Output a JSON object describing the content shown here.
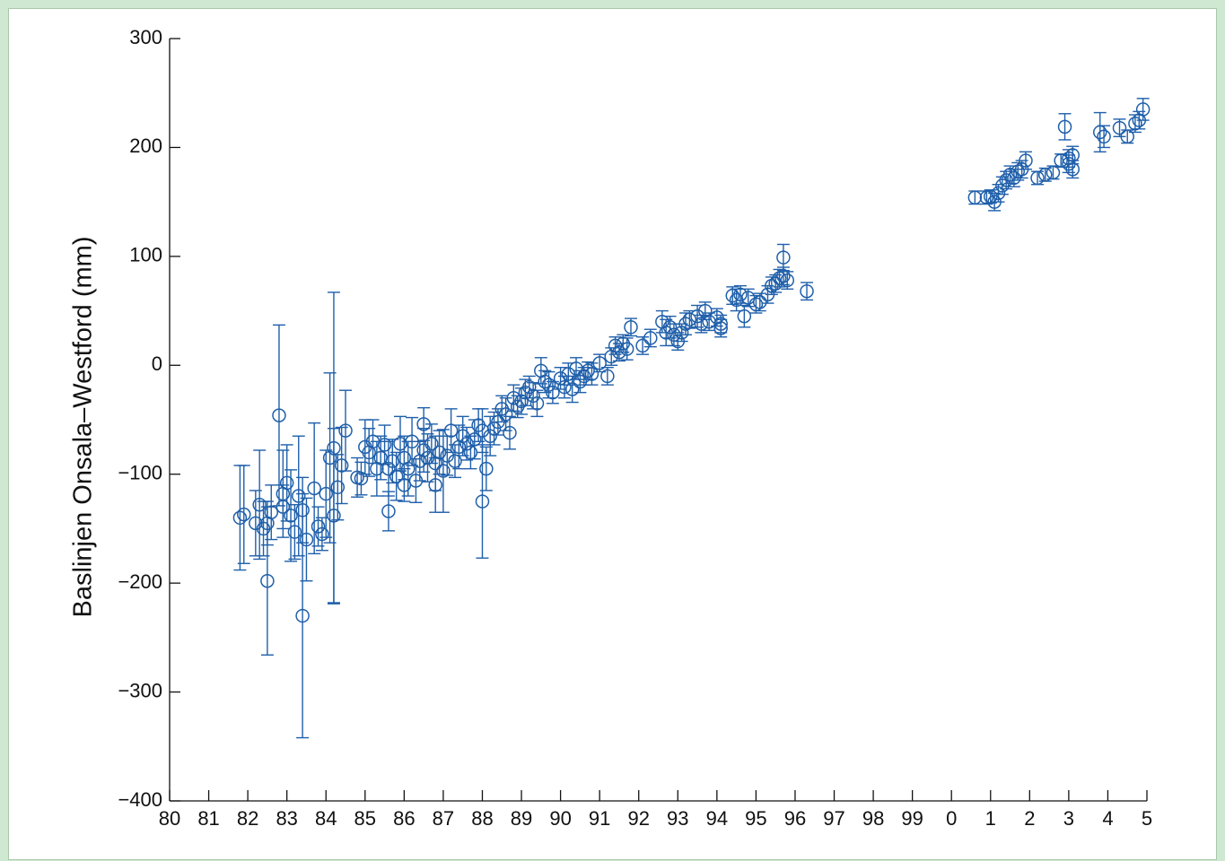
{
  "chart_data": {
    "type": "scatter",
    "title": "",
    "xlabel": "",
    "ylabel": "Baslinjen Onsala–Westford (mm)",
    "ylim": [
      -400,
      300
    ],
    "xlim": [
      1980,
      2005
    ],
    "grid": false,
    "marker": "open-circle-with-error-bars",
    "colors": {
      "series": "#1f5faa",
      "axis": "#111111"
    },
    "y_ticks": [
      {
        "value": 300,
        "label": "300"
      },
      {
        "value": 200,
        "label": "200"
      },
      {
        "value": 100,
        "label": "100"
      },
      {
        "value": 0,
        "label": "0"
      },
      {
        "value": -100,
        "label": "−100"
      },
      {
        "value": -200,
        "label": "−200"
      },
      {
        "value": -300,
        "label": "−300"
      },
      {
        "value": -400,
        "label": "−400"
      }
    ],
    "x_ticks": [
      {
        "value": 1980,
        "label": "80"
      },
      {
        "value": 1981,
        "label": "81"
      },
      {
        "value": 1982,
        "label": "82"
      },
      {
        "value": 1983,
        "label": "83"
      },
      {
        "value": 1984,
        "label": "84"
      },
      {
        "value": 1985,
        "label": "85"
      },
      {
        "value": 1986,
        "label": "86"
      },
      {
        "value": 1987,
        "label": "87"
      },
      {
        "value": 1988,
        "label": "88"
      },
      {
        "value": 1989,
        "label": "89"
      },
      {
        "value": 1990,
        "label": "90"
      },
      {
        "value": 1991,
        "label": "91"
      },
      {
        "value": 1992,
        "label": "92"
      },
      {
        "value": 1993,
        "label": "93"
      },
      {
        "value": 1994,
        "label": "94"
      },
      {
        "value": 1995,
        "label": "95"
      },
      {
        "value": 1996,
        "label": "96"
      },
      {
        "value": 1997,
        "label": "97"
      },
      {
        "value": 1998,
        "label": "98"
      },
      {
        "value": 1999,
        "label": "99"
      },
      {
        "value": 2000,
        "label": "0"
      },
      {
        "value": 2001,
        "label": "1"
      },
      {
        "value": 2002,
        "label": "2"
      },
      {
        "value": 2003,
        "label": "3"
      },
      {
        "value": 2004,
        "label": "4"
      },
      {
        "value": 2005,
        "label": "5"
      }
    ],
    "points": [
      [
        1981.8,
        -140,
        48
      ],
      [
        1981.9,
        -137,
        45
      ],
      [
        1982.2,
        -145,
        30
      ],
      [
        1982.3,
        -128,
        50
      ],
      [
        1982.4,
        -150,
        25
      ],
      [
        1982.5,
        -198,
        68
      ],
      [
        1982.5,
        -145,
        20
      ],
      [
        1982.6,
        -135,
        25
      ],
      [
        1982.8,
        -46,
        83
      ],
      [
        1982.9,
        -118,
        40
      ],
      [
        1982.9,
        -130,
        20
      ],
      [
        1983.0,
        -108,
        35
      ],
      [
        1983.1,
        -138,
        42
      ],
      [
        1983.2,
        -153,
        25
      ],
      [
        1983.3,
        -120,
        55
      ],
      [
        1983.4,
        -230,
        112
      ],
      [
        1983.4,
        -133,
        30
      ],
      [
        1983.5,
        -160,
        38
      ],
      [
        1983.7,
        -113,
        60
      ],
      [
        1983.8,
        -148,
        18
      ],
      [
        1983.9,
        -155,
        15
      ],
      [
        1984.0,
        -118,
        40
      ],
      [
        1984.1,
        -85,
        78
      ],
      [
        1984.2,
        -138,
        80
      ],
      [
        1984.2,
        -76,
        143
      ],
      [
        1984.3,
        -112,
        30
      ],
      [
        1984.4,
        -92,
        35
      ],
      [
        1984.5,
        -60,
        37
      ],
      [
        1984.8,
        -103,
        18
      ],
      [
        1984.9,
        -104,
        15
      ],
      [
        1985.0,
        -75,
        25
      ],
      [
        1985.1,
        -80,
        22
      ],
      [
        1985.2,
        -70,
        20
      ],
      [
        1985.3,
        -95,
        25
      ],
      [
        1985.4,
        -85,
        20
      ],
      [
        1985.5,
        -73,
        18
      ],
      [
        1985.6,
        -134,
        18
      ],
      [
        1985.6,
        -95,
        25
      ],
      [
        1985.7,
        -88,
        20
      ],
      [
        1985.8,
        -102,
        22
      ],
      [
        1985.9,
        -72,
        25
      ],
      [
        1986.0,
        -110,
        15
      ],
      [
        1986.0,
        -85,
        20
      ],
      [
        1986.1,
        -95,
        25
      ],
      [
        1986.2,
        -70,
        22
      ],
      [
        1986.3,
        -106,
        20
      ],
      [
        1986.4,
        -88,
        18
      ],
      [
        1986.5,
        -54,
        15
      ],
      [
        1986.5,
        -78,
        20
      ],
      [
        1986.6,
        -85,
        22
      ],
      [
        1986.7,
        -72,
        18
      ],
      [
        1986.8,
        -90,
        25
      ],
      [
        1986.8,
        -110,
        25
      ],
      [
        1986.9,
        -80,
        20
      ],
      [
        1987.0,
        -97,
        38
      ],
      [
        1987.1,
        -83,
        18
      ],
      [
        1987.2,
        -60,
        20
      ],
      [
        1987.3,
        -88,
        15
      ],
      [
        1987.4,
        -75,
        20
      ],
      [
        1987.5,
        -65,
        18
      ],
      [
        1987.6,
        -72,
        15
      ],
      [
        1987.7,
        -80,
        15
      ],
      [
        1987.8,
        -68,
        18
      ],
      [
        1987.9,
        -55,
        15
      ],
      [
        1988.0,
        -125,
        52
      ],
      [
        1988.0,
        -60,
        20
      ],
      [
        1988.1,
        -95,
        20
      ],
      [
        1988.2,
        -65,
        18
      ],
      [
        1988.3,
        -58,
        15
      ],
      [
        1988.4,
        -52,
        12
      ],
      [
        1988.5,
        -40,
        12
      ],
      [
        1988.6,
        -45,
        15
      ],
      [
        1988.7,
        -62,
        15
      ],
      [
        1988.8,
        -30,
        12
      ],
      [
        1988.9,
        -38,
        10
      ],
      [
        1989.0,
        -33,
        12
      ],
      [
        1989.1,
        -25,
        12
      ],
      [
        1989.2,
        -20,
        10
      ],
      [
        1989.3,
        -28,
        12
      ],
      [
        1989.4,
        -35,
        12
      ],
      [
        1989.5,
        -5,
        12
      ],
      [
        1989.6,
        -15,
        10
      ],
      [
        1989.7,
        -18,
        12
      ],
      [
        1989.8,
        -25,
        10
      ],
      [
        1990.0,
        -12,
        10
      ],
      [
        1990.1,
        -20,
        10
      ],
      [
        1990.2,
        -8,
        10
      ],
      [
        1990.3,
        -22,
        12
      ],
      [
        1990.4,
        -3,
        10
      ],
      [
        1990.5,
        -15,
        10
      ],
      [
        1990.6,
        -10,
        8
      ],
      [
        1990.7,
        -5,
        8
      ],
      [
        1990.8,
        -8,
        10
      ],
      [
        1991.0,
        2,
        8
      ],
      [
        1991.2,
        -10,
        8
      ],
      [
        1991.3,
        8,
        8
      ],
      [
        1991.4,
        18,
        8
      ],
      [
        1991.5,
        12,
        8
      ],
      [
        1991.6,
        20,
        8
      ],
      [
        1991.7,
        15,
        10
      ],
      [
        1991.8,
        35,
        8
      ],
      [
        1992.1,
        18,
        8
      ],
      [
        1992.3,
        25,
        8
      ],
      [
        1992.6,
        40,
        10
      ],
      [
        1992.7,
        30,
        12
      ],
      [
        1992.8,
        35,
        10
      ],
      [
        1992.9,
        28,
        10
      ],
      [
        1993.0,
        22,
        8
      ],
      [
        1993.1,
        30,
        8
      ],
      [
        1993.2,
        38,
        10
      ],
      [
        1993.3,
        42,
        8
      ],
      [
        1993.5,
        45,
        10
      ],
      [
        1993.6,
        38,
        8
      ],
      [
        1993.7,
        50,
        8
      ],
      [
        1993.8,
        40,
        8
      ],
      [
        1994.0,
        44,
        8
      ],
      [
        1994.1,
        38,
        8
      ],
      [
        1994.1,
        34,
        8
      ],
      [
        1994.4,
        64,
        8
      ],
      [
        1994.5,
        60,
        10
      ],
      [
        1994.6,
        65,
        8
      ],
      [
        1994.7,
        45,
        10
      ],
      [
        1994.8,
        62,
        8
      ],
      [
        1995.0,
        56,
        8
      ],
      [
        1995.1,
        58,
        8
      ],
      [
        1995.3,
        65,
        8
      ],
      [
        1995.4,
        73,
        8
      ],
      [
        1995.5,
        75,
        8
      ],
      [
        1995.6,
        80,
        8
      ],
      [
        1995.7,
        82,
        8
      ],
      [
        1995.7,
        99,
        12
      ],
      [
        1995.8,
        78,
        8
      ],
      [
        1996.3,
        68,
        8
      ],
      [
        2000.6,
        154,
        6
      ],
      [
        2000.9,
        154,
        6
      ],
      [
        2001.0,
        155,
        6
      ],
      [
        2001.1,
        150,
        8
      ],
      [
        2001.2,
        158,
        8
      ],
      [
        2001.3,
        165,
        8
      ],
      [
        2001.4,
        170,
        8
      ],
      [
        2001.5,
        175,
        8
      ],
      [
        2001.6,
        172,
        8
      ],
      [
        2001.7,
        178,
        8
      ],
      [
        2001.8,
        180,
        8
      ],
      [
        2001.9,
        188,
        8
      ],
      [
        2002.2,
        172,
        6
      ],
      [
        2002.4,
        175,
        6
      ],
      [
        2002.6,
        177,
        6
      ],
      [
        2002.8,
        188,
        6
      ],
      [
        2002.9,
        219,
        12
      ],
      [
        2003.0,
        190,
        8
      ],
      [
        2003.0,
        185,
        8
      ],
      [
        2003.1,
        180,
        8
      ],
      [
        2003.1,
        193,
        8
      ],
      [
        2003.8,
        214,
        18
      ],
      [
        2003.9,
        210,
        10
      ],
      [
        2004.3,
        218,
        8
      ],
      [
        2004.5,
        210,
        6
      ],
      [
        2004.7,
        222,
        8
      ],
      [
        2004.8,
        225,
        8
      ],
      [
        2004.9,
        235,
        10
      ]
    ]
  }
}
